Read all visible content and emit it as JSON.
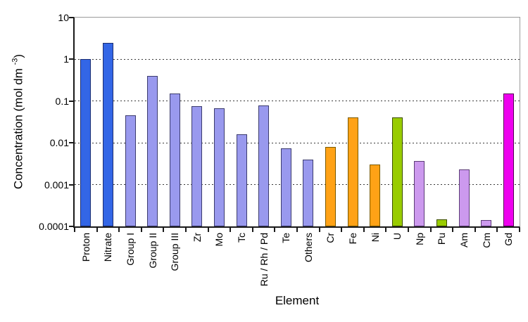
{
  "chart_data": {
    "type": "bar",
    "title": "",
    "xlabel": "Element",
    "ylabel": "Concentration (mol dm -3)",
    "ylabel_prefix": "Concentration (mol dm ",
    "ylabel_sup": "-3",
    "ylabel_close": ")",
    "y_scale": "log10",
    "ylim": [
      0.0001,
      10
    ],
    "y_tick_labels": [
      "10",
      "1",
      "0.1",
      "0.01",
      "0.001",
      "0.0001"
    ],
    "grid": "horizontal dashed at each decade",
    "legend": "none",
    "categories": [
      "Proton",
      "Nitrate",
      "Group I",
      "Group II",
      "Group III",
      "Zr",
      "Mo",
      "Tc",
      "Ru / Rh / Pd",
      "Te",
      "Others",
      "Cr",
      "Fe",
      "Ni",
      "U",
      "Np",
      "Pu",
      "Am",
      "Cm",
      "Gd"
    ],
    "values": [
      1.0,
      2.5,
      0.045,
      0.4,
      0.15,
      0.075,
      0.068,
      0.016,
      0.08,
      0.0073,
      0.004,
      0.008,
      0.04,
      0.003,
      0.04,
      0.0037,
      0.00015,
      0.0023,
      0.00014,
      0.15
    ],
    "bar_fill_colors": [
      "#3366E6",
      "#3366E6",
      "#9999EE",
      "#9999EE",
      "#9999EE",
      "#9999EE",
      "#9999EE",
      "#9999EE",
      "#9999EE",
      "#9999EE",
      "#9999EE",
      "#FFA216",
      "#FFA216",
      "#FFA216",
      "#99CC00",
      "#CC99EE",
      "#99CC00",
      "#CC99EE",
      "#CC99EE",
      "#EE00EE"
    ],
    "bar_border_colors": [
      "#1C2E70",
      "#1C2E70",
      "#3C3C6E",
      "#3C3C6E",
      "#3C3C6E",
      "#3C3C6E",
      "#3C3C6E",
      "#3C3C6E",
      "#3C3C6E",
      "#3C3C6E",
      "#3C3C6E",
      "#7A5A00",
      "#7A5A00",
      "#7A5A00",
      "#3B4D00",
      "#5C3C77",
      "#3B4D00",
      "#5C3C77",
      "#5C3C77",
      "#550055"
    ],
    "color_legend_semantics": {
      "blue": "#3366E6",
      "periwinkle": "#9999EE",
      "orange": "#FFA216",
      "green": "#99CC00",
      "lavender": "#CC99EE",
      "magenta": "#EE00EE"
    }
  }
}
